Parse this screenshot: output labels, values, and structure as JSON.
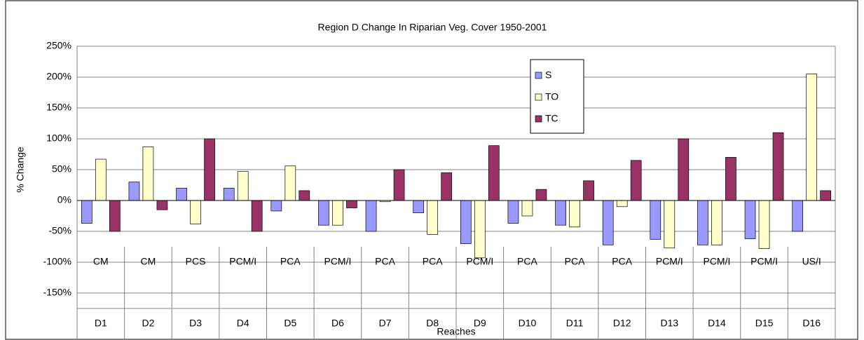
{
  "chart_data": {
    "type": "bar",
    "title": "Region D Change In Riparian Veg. Cover 1950-2001",
    "x_label": "Reaches",
    "y_label": "% Change",
    "categories": [
      "D1",
      "D2",
      "D3",
      "D4",
      "D5",
      "D6",
      "D7",
      "D8",
      "D9",
      "D10",
      "D11",
      "D12",
      "D13",
      "D14",
      "D15",
      "D16"
    ],
    "sub_categories": [
      "CM",
      "CM",
      "PCS",
      "PCM/I",
      "PCA",
      "PCM/I",
      "PCA",
      "PCA",
      "PCM/I",
      "PCA",
      "PCA",
      "PCA",
      "PCM/I",
      "PCM/I",
      "PCM/I",
      "US/I"
    ],
    "series": [
      {
        "name": "S",
        "color": "#9999ff",
        "values": [
          -37,
          30,
          20,
          20,
          -17,
          -40,
          -50,
          -20,
          -70,
          -37,
          -40,
          -72,
          -63,
          -72,
          -62,
          -50
        ]
      },
      {
        "name": "TO",
        "color": "#ffffcc",
        "values": [
          67,
          87,
          -38,
          47,
          56,
          -40,
          -2,
          -55,
          -93,
          -25,
          -43,
          -10,
          -77,
          -72,
          -78,
          205
        ]
      },
      {
        "name": "TC",
        "color": "#993366",
        "values": [
          -50,
          -15,
          100,
          -50,
          16,
          -12,
          50,
          45,
          89,
          18,
          32,
          65,
          100,
          70,
          110,
          16
        ]
      }
    ],
    "ylim": [
      -150,
      250
    ],
    "yticks": [
      {
        "value": -150,
        "label": "-150%"
      },
      {
        "value": -100,
        "label": "-100%"
      },
      {
        "value": -50,
        "label": "-50%"
      },
      {
        "value": 0,
        "label": "0%"
      },
      {
        "value": 50,
        "label": "50%"
      },
      {
        "value": 100,
        "label": "100%"
      },
      {
        "value": 150,
        "label": "150%"
      },
      {
        "value": 200,
        "label": "200%"
      },
      {
        "value": 250,
        "label": "250%"
      }
    ],
    "grid": true
  }
}
